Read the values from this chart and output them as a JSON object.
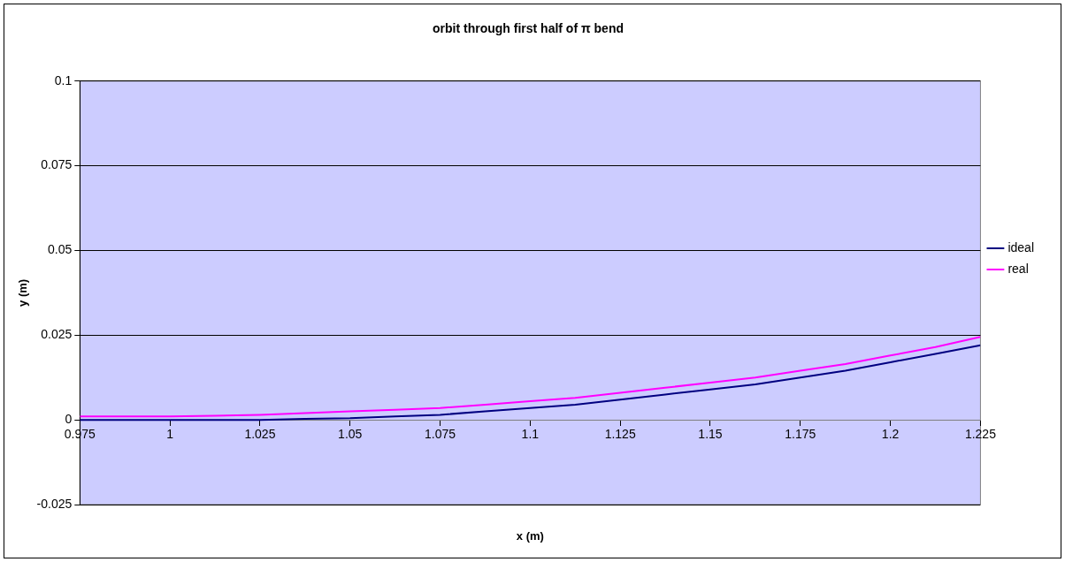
{
  "chart_data": {
    "type": "line",
    "title": "orbit through first half of π bend",
    "xlabel": "x (m)",
    "ylabel": "y (m)",
    "x": [
      0.975,
      0.9875,
      1,
      1.0125,
      1.025,
      1.0375,
      1.05,
      1.0625,
      1.075,
      1.0875,
      1.1,
      1.1125,
      1.125,
      1.1375,
      1.15,
      1.1625,
      1.175,
      1.1875,
      1.2,
      1.2125,
      1.225
    ],
    "series": [
      {
        "name": "ideal",
        "color": "#000080",
        "values": [
          0,
          0,
          0,
          0,
          0,
          0.0003,
          0.0005,
          0.001,
          0.0015,
          0.0025,
          0.0035,
          0.0045,
          0.006,
          0.0075,
          0.009,
          0.0105,
          0.0125,
          0.0145,
          0.017,
          0.0195,
          0.022
        ]
      },
      {
        "name": "real",
        "color": "#ff00ff",
        "values": [
          0.001,
          0.001,
          0.001,
          0.0012,
          0.0015,
          0.002,
          0.0025,
          0.003,
          0.0035,
          0.0045,
          0.0055,
          0.0065,
          0.008,
          0.0095,
          0.011,
          0.0125,
          0.0145,
          0.0165,
          0.019,
          0.0215,
          0.0245
        ]
      }
    ],
    "xlim": [
      0.975,
      1.225
    ],
    "xticks": [
      0.975,
      1,
      1.025,
      1.05,
      1.075,
      1.1,
      1.125,
      1.15,
      1.175,
      1.2,
      1.225
    ],
    "ylim": [
      -0.025,
      0.1
    ],
    "yticks": [
      -0.025,
      0,
      0.025,
      0.05,
      0.075,
      0.1
    ],
    "grid": "y",
    "legend": "right",
    "marker": "none",
    "line_style": "solid"
  }
}
